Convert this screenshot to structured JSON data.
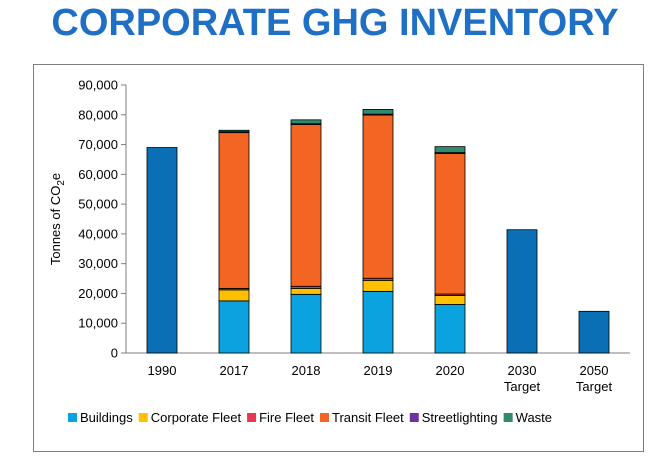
{
  "title": "CORPORATE GHG INVENTORY",
  "chart_data": {
    "type": "bar",
    "stacked": true,
    "categories": [
      "1990",
      "2017",
      "2018",
      "2019",
      "2020",
      "2030",
      "2050"
    ],
    "category_sublabels": [
      "",
      "",
      "",
      "",
      "",
      "Target",
      "Target"
    ],
    "ylabel": "Tonnes of CO",
    "ylabel_subscript": "2",
    "ylabel_suffix": "e",
    "ylim": [
      0,
      90000
    ],
    "yticks": [
      "0",
      "10,000",
      "20,000",
      "30,000",
      "40,000",
      "50,000",
      "60,000",
      "70,000",
      "80,000",
      "90,000"
    ],
    "ytick_values": [
      0,
      10000,
      20000,
      30000,
      40000,
      50000,
      60000,
      70000,
      80000,
      90000
    ],
    "grid": false,
    "legend_position": "bottom",
    "total_color": "#0b6fb5",
    "series": [
      {
        "name": "Buildings",
        "color": "#0aa3e0",
        "values": [
          null,
          17500,
          19700,
          20700,
          16300,
          null,
          null
        ]
      },
      {
        "name": "Corporate Fleet",
        "color": "#ffc000",
        "values": [
          null,
          3700,
          2000,
          3700,
          3000,
          null,
          null
        ]
      },
      {
        "name": "Fire Fleet",
        "color": "#e8384f",
        "values": [
          null,
          500,
          700,
          700,
          500,
          null,
          null
        ]
      },
      {
        "name": "Transit Fleet",
        "color": "#f26522",
        "values": [
          null,
          52300,
          54300,
          54800,
          47200,
          null,
          null
        ]
      },
      {
        "name": "Streetlighting",
        "color": "#7030a0",
        "values": [
          null,
          300,
          300,
          300,
          300,
          null,
          null
        ]
      },
      {
        "name": "Waste",
        "color": "#2e8b6d",
        "values": [
          null,
          500,
          1300,
          1600,
          2000,
          null,
          null
        ]
      }
    ],
    "totals_only": {
      "1990": 69000,
      "2030": 41400,
      "2050": 14000
    }
  }
}
